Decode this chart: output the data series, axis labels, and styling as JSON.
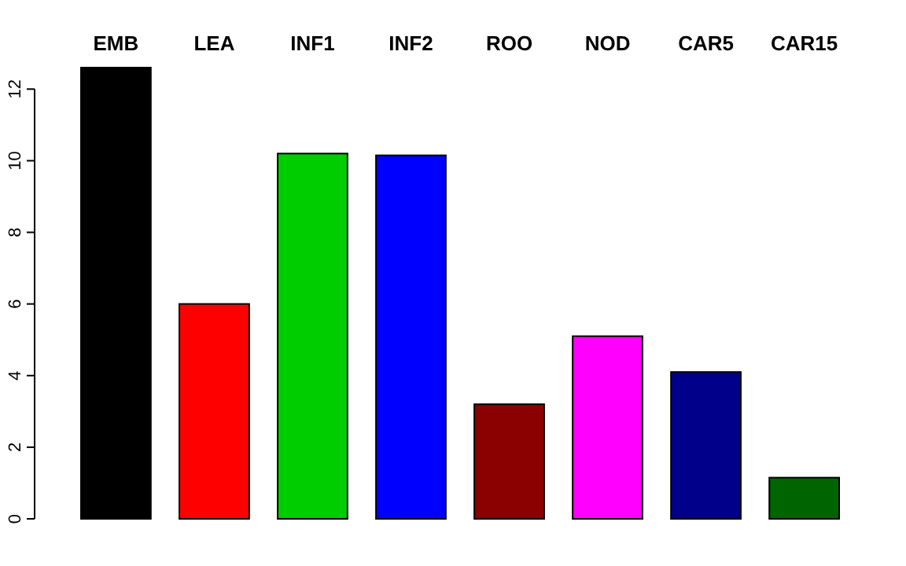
{
  "chart_data": {
    "type": "bar",
    "categories": [
      "EMB",
      "LEA",
      "INF1",
      "INF2",
      "ROO",
      "NOD",
      "CAR5",
      "CAR15"
    ],
    "values": [
      12.6,
      6.0,
      10.2,
      10.15,
      3.2,
      5.1,
      4.1,
      1.15
    ],
    "colors": [
      "#000000",
      "#ff0000",
      "#00cd00",
      "#0000ff",
      "#8b0000",
      "#ff00ff",
      "#00008b",
      "#006400"
    ],
    "ylim": [
      0,
      12.6
    ],
    "yticks": [
      0,
      2,
      4,
      6,
      8,
      10,
      12
    ],
    "grid": false
  }
}
